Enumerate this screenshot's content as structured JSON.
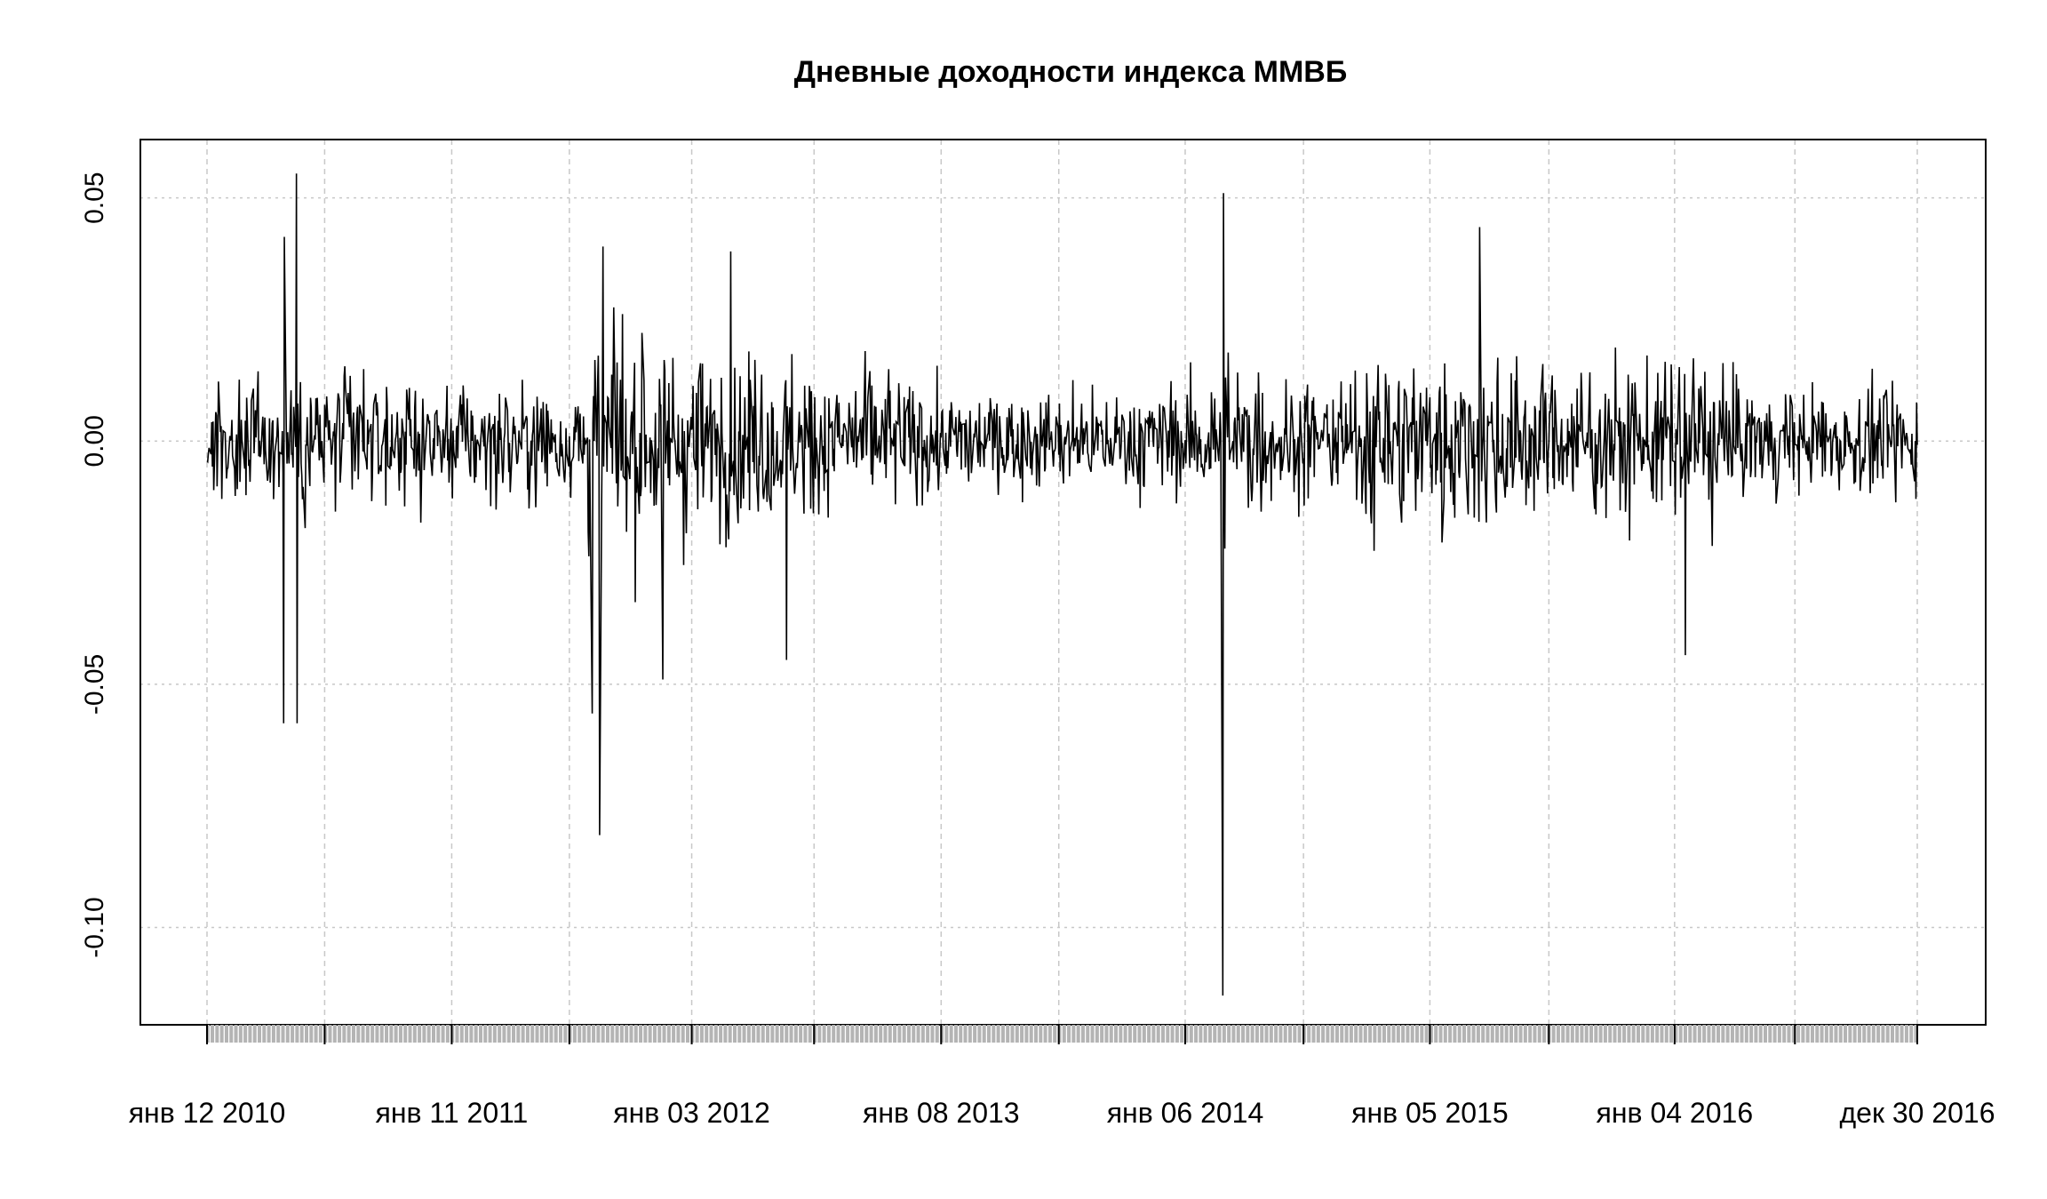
{
  "chart_data": {
    "type": "line",
    "title": "Дневные доходности индекса ММВБ",
    "xlabel": "",
    "ylabel": "",
    "ylim": [
      -0.12,
      0.062
    ],
    "x_tick_labels": [
      "янв 12 2010",
      "янв 11 2011",
      "янв 03 2012",
      "янв 08 2013",
      "янв 06 2014",
      "янв 05 2015",
      "янв 04 2016",
      "дек 30 2016"
    ],
    "y_ticks": [
      0.05,
      0.0,
      -0.05,
      -0.1
    ],
    "y_tick_labels": [
      "0.05",
      "0.00",
      "-0.05",
      "-0.10"
    ],
    "grid": true,
    "legend": "none",
    "series": [
      {
        "color": "#000000",
        "x_start": "2010-01-12",
        "x_end": "2016-12-30",
        "approx_observations": 1750,
        "extremes": [
          {
            "date": "2010-05-06",
            "value": -0.058
          },
          {
            "date": "2010-05-07",
            "value": 0.042
          },
          {
            "date": "2010-05-25",
            "value": 0.055
          },
          {
            "date": "2010-05-26",
            "value": -0.058
          },
          {
            "date": "2011-08-08",
            "value": -0.056
          },
          {
            "date": "2011-08-19",
            "value": -0.081
          },
          {
            "date": "2011-08-24",
            "value": 0.04
          },
          {
            "date": "2011-11-21",
            "value": -0.049
          },
          {
            "date": "2012-03-01",
            "value": 0.039
          },
          {
            "date": "2012-05-23",
            "value": -0.045
          },
          {
            "date": "2014-03-03",
            "value": -0.114
          },
          {
            "date": "2014-03-04",
            "value": 0.051
          },
          {
            "date": "2015-03-20",
            "value": 0.044
          },
          {
            "date": "2016-01-20",
            "value": -0.044
          }
        ]
      }
    ]
  }
}
